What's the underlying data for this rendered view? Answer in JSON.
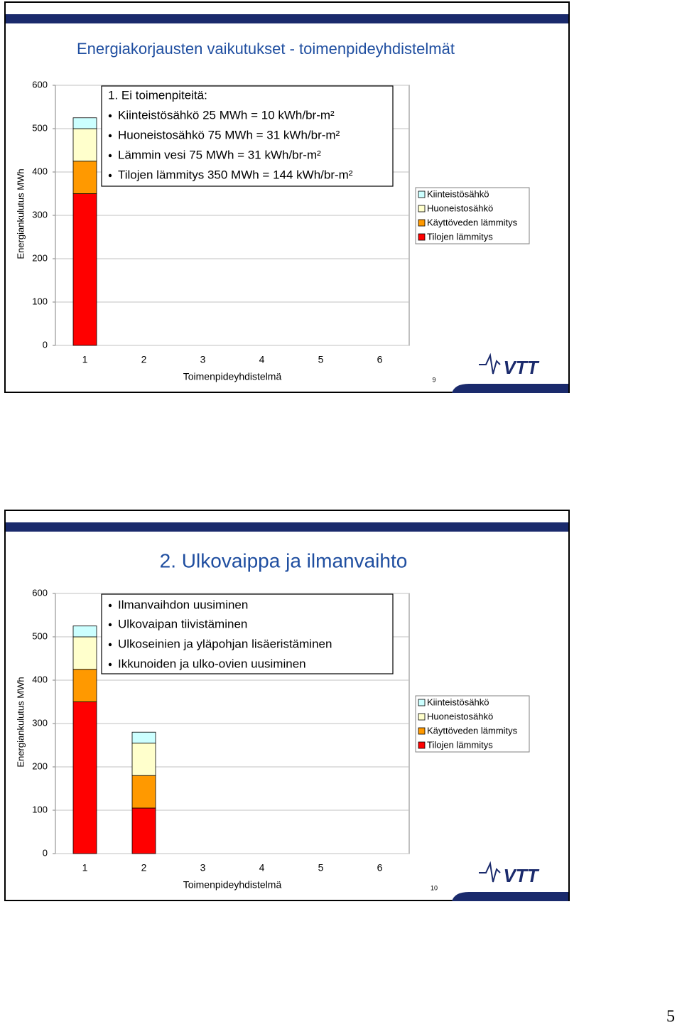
{
  "chart_data": [
    {
      "type": "bar",
      "stacked": true,
      "title": "Energiakorjausten vaikutukset - toimenpideyhdistelmät",
      "textbox": {
        "heading": "1. Ei toimenpiteitä:",
        "items": [
          "Kiinteistösähkö 25 MWh = 10 kWh/br-m²",
          "Huoneistosähkö 75 MWh = 31 kWh/br-m²",
          "Lämmin vesi 75 MWh = 31 kWh/br-m²",
          "Tilojen lämmitys 350 MWh = 144 kWh/br-m²"
        ]
      },
      "ylabel": "Energiankulutus MWh",
      "xlabel": "Toimenpideyhdistelmä",
      "categories": [
        "1",
        "2",
        "3",
        "4",
        "5",
        "6"
      ],
      "series": [
        {
          "name": "Tilojen lämmitys",
          "color": "#ff0000",
          "values": [
            350,
            null,
            null,
            null,
            null,
            null
          ]
        },
        {
          "name": "Käyttöveden lämmitys",
          "color": "#ff9900",
          "values": [
            75,
            null,
            null,
            null,
            null,
            null
          ]
        },
        {
          "name": "Huoneistosähkö",
          "color": "#ffffcc",
          "values": [
            75,
            null,
            null,
            null,
            null,
            null
          ]
        },
        {
          "name": "Kiinteistösähkö",
          "color": "#ccffff",
          "values": [
            25,
            null,
            null,
            null,
            null,
            null
          ]
        }
      ],
      "ylim": [
        0,
        600
      ],
      "yticks": [
        0,
        100,
        200,
        300,
        400,
        500,
        600
      ],
      "grid": true,
      "legend": "right",
      "slide_number": "9",
      "logo": "VTT"
    },
    {
      "type": "bar",
      "stacked": true,
      "title": "2. Ulkovaippa ja ilmanvaihto",
      "textbox": {
        "items": [
          "Ilmanvaihdon uusiminen",
          "Ulkovaipan tiivistäminen",
          "Ulkoseinien ja yläpohjan lisäeristäminen",
          "Ikkunoiden ja ulko-ovien uusiminen"
        ]
      },
      "ylabel": "Energiankulutus MWh",
      "xlabel": "Toimenpideyhdistelmä",
      "categories": [
        "1",
        "2",
        "3",
        "4",
        "5",
        "6"
      ],
      "series": [
        {
          "name": "Tilojen lämmitys",
          "color": "#ff0000",
          "values": [
            350,
            105,
            null,
            null,
            null,
            null
          ]
        },
        {
          "name": "Käyttöveden lämmitys",
          "color": "#ff9900",
          "values": [
            75,
            75,
            null,
            null,
            null,
            null
          ]
        },
        {
          "name": "Huoneistosähkö",
          "color": "#ffffcc",
          "values": [
            75,
            75,
            null,
            null,
            null,
            null
          ]
        },
        {
          "name": "Kiinteistösähkö",
          "color": "#ccffff",
          "values": [
            25,
            25,
            null,
            null,
            null,
            null
          ]
        }
      ],
      "ylim": [
        0,
        600
      ],
      "yticks": [
        0,
        100,
        200,
        300,
        400,
        500,
        600
      ],
      "grid": true,
      "legend": "right",
      "slide_number": "10",
      "logo": "VTT"
    }
  ],
  "page_number": "5"
}
